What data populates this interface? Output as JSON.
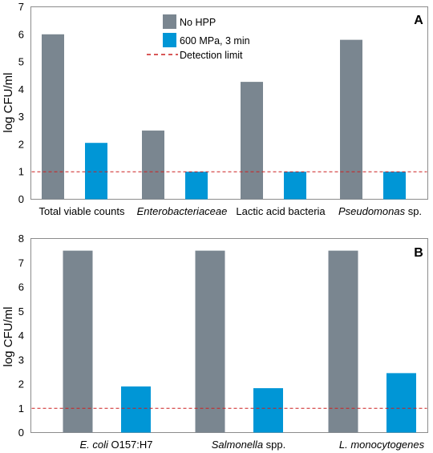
{
  "colors": {
    "no_hpp": "#7a8690",
    "hpp": "#0096d6",
    "detection": "#cc2020",
    "frame": "#8c8c8c"
  },
  "legend": {
    "no_hpp": "No HPP",
    "hpp": "600 MPa, 3 min",
    "detection": "Detection limit"
  },
  "chart_data": [
    {
      "type": "bar",
      "panel": "A",
      "ylabel": "log CFU/ml",
      "ylim": [
        0,
        7
      ],
      "yticks": [
        "0",
        "1",
        "2",
        "3",
        "4",
        "5",
        "6",
        "7"
      ],
      "categories": [
        {
          "parts": [
            {
              "t": "Total viable counts",
              "i": false
            }
          ]
        },
        {
          "parts": [
            {
              "t": "Enterobacteriaceae",
              "i": true
            }
          ]
        },
        {
          "parts": [
            {
              "t": "Lactic acid bacteria",
              "i": false
            }
          ]
        },
        {
          "parts": [
            {
              "t": "Pseudomonas",
              "i": true
            },
            {
              "t": " sp.",
              "i": false
            }
          ]
        }
      ],
      "series": [
        {
          "name": "No HPP",
          "values": [
            6.0,
            2.5,
            4.27,
            5.8
          ]
        },
        {
          "name": "600 MPa, 3 min",
          "values": [
            2.05,
            1.0,
            1.0,
            1.0
          ]
        }
      ],
      "detection_limit": 1,
      "legend_position": "top-center"
    },
    {
      "type": "bar",
      "panel": "B",
      "ylabel": "log CFU/ml",
      "ylim": [
        0,
        8
      ],
      "yticks": [
        "0",
        "1",
        "2",
        "3",
        "4",
        "5",
        "6",
        "7",
        "8"
      ],
      "categories": [
        {
          "parts": [
            {
              "t": "E. coli",
              "i": true
            },
            {
              "t": " O157:H7",
              "i": false
            }
          ]
        },
        {
          "parts": [
            {
              "t": "Salmonella",
              "i": true
            },
            {
              "t": " spp.",
              "i": false
            }
          ]
        },
        {
          "parts": [
            {
              "t": "L. monocytogenes",
              "i": true
            }
          ]
        }
      ],
      "series": [
        {
          "name": "No HPP",
          "values": [
            7.5,
            7.5,
            7.5
          ]
        },
        {
          "name": "600 MPa, 3 min",
          "values": [
            1.9,
            1.83,
            2.45
          ]
        }
      ],
      "detection_limit": 1
    }
  ]
}
